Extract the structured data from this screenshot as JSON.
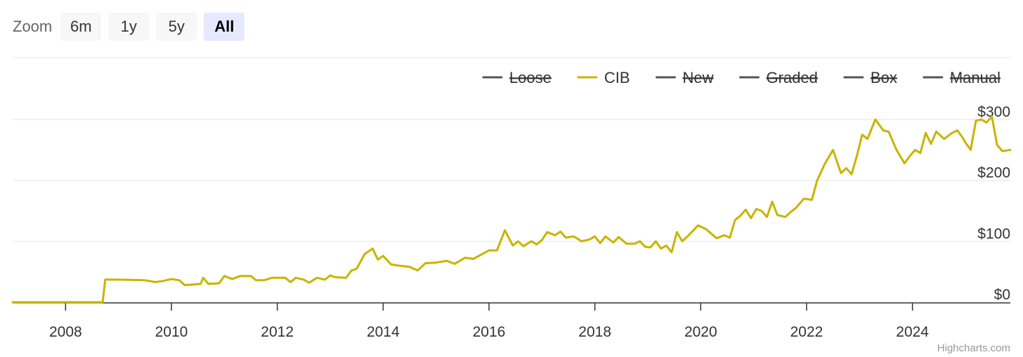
{
  "zoom": {
    "label": "Zoom",
    "buttons": [
      {
        "label": "6m",
        "active": false
      },
      {
        "label": "1y",
        "active": false
      },
      {
        "label": "5y",
        "active": false
      },
      {
        "label": "All",
        "active": true
      }
    ]
  },
  "credits": "Highcharts.com",
  "chart_data": {
    "type": "line",
    "title": "",
    "xlabel": "",
    "ylabel": "",
    "legend_position": "top-right",
    "grid": true,
    "xlim": [
      2007.0,
      2025.85
    ],
    "ylim": [
      0,
      300
    ],
    "x_ticks": [
      {
        "value": 2008,
        "label": "2008"
      },
      {
        "value": 2010,
        "label": "2010"
      },
      {
        "value": 2012,
        "label": "2012"
      },
      {
        "value": 2014,
        "label": "2014"
      },
      {
        "value": 2016,
        "label": "2016"
      },
      {
        "value": 2018,
        "label": "2018"
      },
      {
        "value": 2020,
        "label": "2020"
      },
      {
        "value": 2022,
        "label": "2022"
      },
      {
        "value": 2024,
        "label": "2024"
      }
    ],
    "y_ticks": [
      {
        "value": 0,
        "label": "$0"
      },
      {
        "value": 100,
        "label": "$100"
      },
      {
        "value": 200,
        "label": "$200"
      },
      {
        "value": 300,
        "label": "$300"
      }
    ],
    "legend": [
      {
        "name": "Loose",
        "visible": false,
        "color": "#555555"
      },
      {
        "name": "CIB",
        "visible": true,
        "color": "#c9b400"
      },
      {
        "name": "New",
        "visible": false,
        "color": "#555555"
      },
      {
        "name": "Graded",
        "visible": false,
        "color": "#555555"
      },
      {
        "name": "Box",
        "visible": false,
        "color": "#555555"
      },
      {
        "name": "Manual",
        "visible": false,
        "color": "#555555"
      }
    ],
    "series": [
      {
        "name": "CIB",
        "color": "#c9b400",
        "points": [
          [
            2007.0,
            0
          ],
          [
            2008.7,
            0
          ],
          [
            2008.75,
            37
          ],
          [
            2009.0,
            37
          ],
          [
            2009.5,
            36
          ],
          [
            2009.7,
            33
          ],
          [
            2009.85,
            35
          ],
          [
            2010.0,
            38
          ],
          [
            2010.15,
            36
          ],
          [
            2010.25,
            28
          ],
          [
            2010.4,
            29
          ],
          [
            2010.55,
            30
          ],
          [
            2010.6,
            40
          ],
          [
            2010.7,
            30
          ],
          [
            2010.9,
            31
          ],
          [
            2011.0,
            43
          ],
          [
            2011.15,
            38
          ],
          [
            2011.3,
            43
          ],
          [
            2011.5,
            43
          ],
          [
            2011.6,
            36
          ],
          [
            2011.75,
            36
          ],
          [
            2011.9,
            40
          ],
          [
            2012.0,
            40
          ],
          [
            2012.15,
            40
          ],
          [
            2012.25,
            33
          ],
          [
            2012.35,
            40
          ],
          [
            2012.5,
            37
          ],
          [
            2012.6,
            32
          ],
          [
            2012.75,
            40
          ],
          [
            2012.9,
            37
          ],
          [
            2013.0,
            44
          ],
          [
            2013.1,
            41
          ],
          [
            2013.3,
            40
          ],
          [
            2013.4,
            52
          ],
          [
            2013.5,
            55
          ],
          [
            2013.65,
            79
          ],
          [
            2013.8,
            88
          ],
          [
            2013.9,
            70
          ],
          [
            2014.0,
            76
          ],
          [
            2014.15,
            62
          ],
          [
            2014.3,
            60
          ],
          [
            2014.5,
            58
          ],
          [
            2014.65,
            52
          ],
          [
            2014.8,
            64
          ],
          [
            2015.0,
            65
          ],
          [
            2015.2,
            68
          ],
          [
            2015.35,
            63
          ],
          [
            2015.55,
            73
          ],
          [
            2015.7,
            71
          ],
          [
            2015.85,
            78
          ],
          [
            2016.0,
            85
          ],
          [
            2016.15,
            85
          ],
          [
            2016.3,
            118
          ],
          [
            2016.45,
            93
          ],
          [
            2016.55,
            100
          ],
          [
            2016.65,
            92
          ],
          [
            2016.8,
            100
          ],
          [
            2016.9,
            95
          ],
          [
            2017.0,
            102
          ],
          [
            2017.1,
            115
          ],
          [
            2017.25,
            110
          ],
          [
            2017.35,
            116
          ],
          [
            2017.45,
            106
          ],
          [
            2017.6,
            108
          ],
          [
            2017.75,
            100
          ],
          [
            2017.9,
            103
          ],
          [
            2018.0,
            108
          ],
          [
            2018.1,
            97
          ],
          [
            2018.2,
            108
          ],
          [
            2018.35,
            98
          ],
          [
            2018.45,
            107
          ],
          [
            2018.6,
            96
          ],
          [
            2018.75,
            96
          ],
          [
            2018.85,
            100
          ],
          [
            2018.95,
            91
          ],
          [
            2019.05,
            90
          ],
          [
            2019.15,
            100
          ],
          [
            2019.25,
            88
          ],
          [
            2019.35,
            93
          ],
          [
            2019.45,
            82
          ],
          [
            2019.55,
            115
          ],
          [
            2019.65,
            100
          ],
          [
            2019.75,
            108
          ],
          [
            2019.95,
            126
          ],
          [
            2020.1,
            120
          ],
          [
            2020.3,
            105
          ],
          [
            2020.45,
            110
          ],
          [
            2020.55,
            106
          ],
          [
            2020.65,
            135
          ],
          [
            2020.75,
            142
          ],
          [
            2020.85,
            152
          ],
          [
            2020.95,
            138
          ],
          [
            2021.05,
            153
          ],
          [
            2021.15,
            150
          ],
          [
            2021.25,
            140
          ],
          [
            2021.35,
            165
          ],
          [
            2021.45,
            143
          ],
          [
            2021.6,
            140
          ],
          [
            2021.7,
            148
          ],
          [
            2021.8,
            155
          ],
          [
            2021.95,
            170
          ],
          [
            2022.1,
            168
          ],
          [
            2022.2,
            200
          ],
          [
            2022.35,
            228
          ],
          [
            2022.5,
            250
          ],
          [
            2022.65,
            212
          ],
          [
            2022.75,
            220
          ],
          [
            2022.85,
            210
          ],
          [
            2022.95,
            240
          ],
          [
            2023.05,
            275
          ],
          [
            2023.15,
            268
          ],
          [
            2023.3,
            300
          ],
          [
            2023.45,
            282
          ],
          [
            2023.55,
            280
          ],
          [
            2023.7,
            250
          ],
          [
            2023.85,
            228
          ],
          [
            2023.95,
            240
          ],
          [
            2024.05,
            250
          ],
          [
            2024.15,
            245
          ],
          [
            2024.25,
            278
          ],
          [
            2024.35,
            260
          ],
          [
            2024.45,
            280
          ],
          [
            2024.6,
            268
          ],
          [
            2024.75,
            278
          ],
          [
            2024.85,
            282
          ],
          [
            2024.95,
            270
          ],
          [
            2025.0,
            262
          ],
          [
            2025.1,
            250
          ],
          [
            2025.2,
            298
          ],
          [
            2025.3,
            300
          ],
          [
            2025.4,
            295
          ],
          [
            2025.5,
            305
          ],
          [
            2025.6,
            258
          ],
          [
            2025.7,
            248
          ],
          [
            2025.85,
            250
          ]
        ]
      }
    ]
  }
}
